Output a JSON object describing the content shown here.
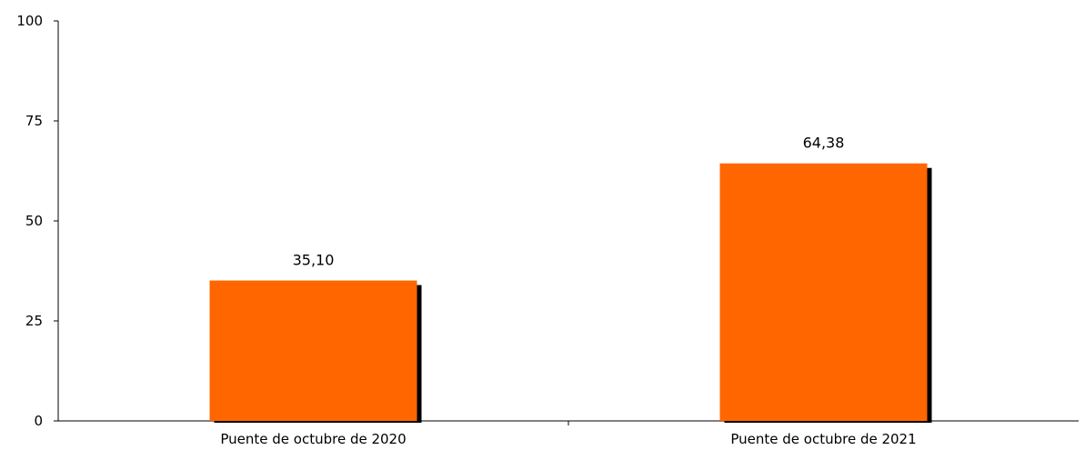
{
  "chart_data": {
    "type": "bar",
    "categories": [
      "Puente de octubre de 2020",
      "Puente de octubre de 2021"
    ],
    "values": [
      35.1,
      64.38
    ],
    "data_labels": [
      "35,10",
      "64,38"
    ],
    "y_ticks": [
      "0",
      "25",
      "50",
      "75",
      "100"
    ],
    "ylim": [
      0,
      100
    ],
    "title": "",
    "xlabel": "",
    "ylabel": "",
    "grid": false,
    "legend": "none",
    "bar_color": "#FF6600",
    "shadow_color": "#000000"
  }
}
